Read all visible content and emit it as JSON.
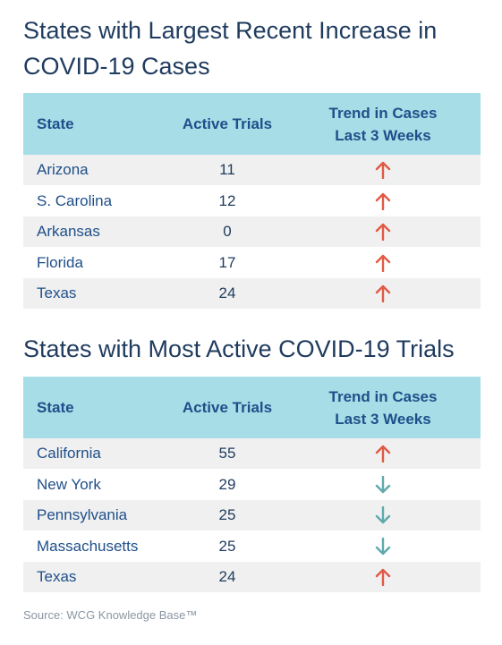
{
  "chart_data": [
    {
      "type": "table",
      "title": "States with Largest Recent Increase in COVID-19 Cases",
      "columns": [
        "State",
        "Active Trials",
        "Trend in Cases Last 3 Weeks"
      ],
      "rows": [
        {
          "state": "Arizona",
          "trials": "11",
          "trend": "up"
        },
        {
          "state": "S. Carolina",
          "trials": "12",
          "trend": "up"
        },
        {
          "state": "Arkansas",
          "trials": "0",
          "trend": "up"
        },
        {
          "state": "Florida",
          "trials": "17",
          "trend": "up"
        },
        {
          "state": "Texas",
          "trials": "24",
          "trend": "up"
        }
      ]
    },
    {
      "type": "table",
      "title": "States with Most Active COVID-19 Trials",
      "columns": [
        "State",
        "Active Trials",
        "Trend in Cases Last 3 Weeks"
      ],
      "rows": [
        {
          "state": "California",
          "trials": "55",
          "trend": "up"
        },
        {
          "state": "New York",
          "trials": "29",
          "trend": "down"
        },
        {
          "state": "Pennsylvania",
          "trials": "25",
          "trend": "down"
        },
        {
          "state": "Massachusetts",
          "trials": "25",
          "trend": "down"
        },
        {
          "state": "Texas",
          "trials": "24",
          "trend": "up"
        }
      ]
    }
  ],
  "header": {
    "state": "State",
    "trials": "Active Trials",
    "trend_line1": "Trend in Cases",
    "trend_line2": "Last 3 Weeks"
  },
  "colors": {
    "up_arrow": "#e05a45",
    "down_arrow": "#5fa9ad",
    "header_bg": "#a6dde6"
  },
  "icons": {
    "up": "arrow-up-icon",
    "down": "arrow-down-icon"
  },
  "source": "Source: WCG Knowledge Base™"
}
